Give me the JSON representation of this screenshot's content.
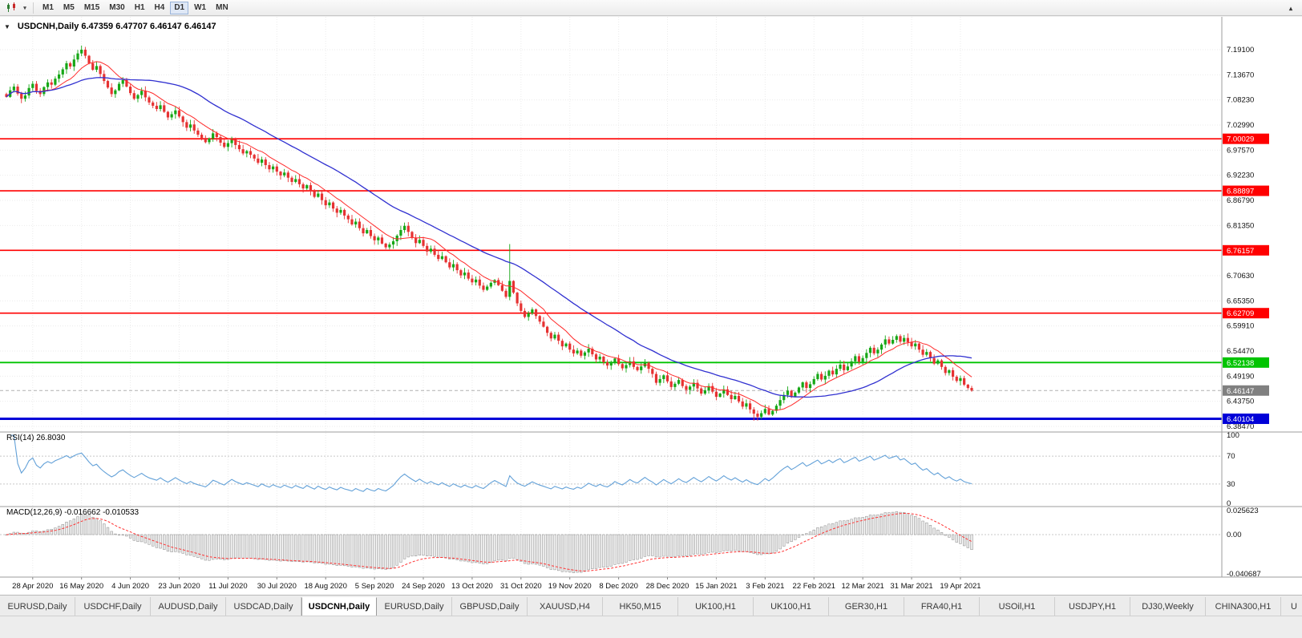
{
  "toolbar": {
    "timeframes": [
      "M1",
      "M5",
      "M15",
      "M30",
      "H1",
      "H4",
      "D1",
      "W1",
      "MN"
    ],
    "active_timeframe": "D1",
    "chart_type_icon": "candlestick-chart-icon",
    "dropdown_caret": "▾",
    "overflow_icon": "▴"
  },
  "chart_data": {
    "type": "candlestick",
    "symbol": "USDCNH",
    "period": "Daily",
    "info_line": "USDCNH,Daily 6.47359 6.47707 6.46147 6.46147",
    "ohlc_current": {
      "open": 6.47359,
      "high": 6.47707,
      "low": 6.46147,
      "close": 6.46147
    },
    "price_axis_ticks": [
      "7.19100",
      "7.13670",
      "7.08230",
      "7.02990",
      "6.97570",
      "6.92230",
      "6.86790",
      "6.81350",
      "6.76070",
      "6.70630",
      "6.65350",
      "6.59910",
      "6.54470",
      "6.49190",
      "6.43750",
      "6.38470"
    ],
    "date_axis_labels": [
      "28 Apr 2020",
      "16 May 2020",
      "4 Jun 2020",
      "23 Jun 2020",
      "11 Jul 2020",
      "30 Jul 2020",
      "18 Aug 2020",
      "5 Sep 2020",
      "24 Sep 2020",
      "13 Oct 2020",
      "31 Oct 2020",
      "19 Nov 2020",
      "8 Dec 2020",
      "28 Dec 2020",
      "15 Jan 2021",
      "3 Feb 2021",
      "22 Feb 2021",
      "12 Mar 2021",
      "31 Mar 2021",
      "19 Apr 2021"
    ],
    "bars_per_label": 13,
    "first_label_bar": 7,
    "closes": [
      7.09,
      7.104,
      7.112,
      7.097,
      7.086,
      7.093,
      7.109,
      7.118,
      7.103,
      7.096,
      7.111,
      7.121,
      7.116,
      7.129,
      7.138,
      7.149,
      7.162,
      7.155,
      7.17,
      7.183,
      7.191,
      7.178,
      7.162,
      7.148,
      7.156,
      7.139,
      7.124,
      7.11,
      7.096,
      7.104,
      7.118,
      7.126,
      7.112,
      7.098,
      7.086,
      7.094,
      7.103,
      7.089,
      7.078,
      7.071,
      7.064,
      7.072,
      7.058,
      7.046,
      7.053,
      7.061,
      7.048,
      7.036,
      7.024,
      7.031,
      7.018,
      7.009,
      7.002,
      6.993,
      7.001,
      7.012,
      7.004,
      6.992,
      6.983,
      6.991,
      6.999,
      6.987,
      6.978,
      6.969,
      6.974,
      6.966,
      6.958,
      6.949,
      6.956,
      6.944,
      6.935,
      6.941,
      6.93,
      6.922,
      6.928,
      6.917,
      6.908,
      6.914,
      6.903,
      6.894,
      6.901,
      6.888,
      6.876,
      6.883,
      6.869,
      6.858,
      6.864,
      6.851,
      6.842,
      6.848,
      6.836,
      6.828,
      6.817,
      6.823,
      6.809,
      6.798,
      6.805,
      6.792,
      6.783,
      6.789,
      6.776,
      6.768,
      6.774,
      6.781,
      6.793,
      6.805,
      6.814,
      6.801,
      6.789,
      6.777,
      6.784,
      6.771,
      6.759,
      6.765,
      6.752,
      6.743,
      6.749,
      6.736,
      6.725,
      6.732,
      6.719,
      6.708,
      6.714,
      6.701,
      6.693,
      6.699,
      6.686,
      6.677,
      6.684,
      6.692,
      6.698,
      6.687,
      6.675,
      6.662,
      6.696,
      6.671,
      6.648,
      6.632,
      6.619,
      6.627,
      6.635,
      6.621,
      6.609,
      6.598,
      6.585,
      6.573,
      6.581,
      6.568,
      6.556,
      6.562,
      6.549,
      6.541,
      6.547,
      6.536,
      6.543,
      6.551,
      6.539,
      6.528,
      6.534,
      6.522,
      6.515,
      6.521,
      6.53,
      6.518,
      6.509,
      6.516,
      6.524,
      6.512,
      6.505,
      6.513,
      6.521,
      6.508,
      6.497,
      6.478,
      6.486,
      6.494,
      6.481,
      6.469,
      6.476,
      6.484,
      6.471,
      6.463,
      6.47,
      6.478,
      6.466,
      6.455,
      6.462,
      6.471,
      6.459,
      6.448,
      6.455,
      6.464,
      6.452,
      6.443,
      6.45,
      6.438,
      6.427,
      6.434,
      6.421,
      6.412,
      6.405,
      6.413,
      6.422,
      6.41,
      6.418,
      6.429,
      6.441,
      6.452,
      6.461,
      6.449,
      6.457,
      6.468,
      6.479,
      6.467,
      6.475,
      6.486,
      6.497,
      6.485,
      6.493,
      6.504,
      6.496,
      6.508,
      6.517,
      6.505,
      6.513,
      6.524,
      6.535,
      6.523,
      6.531,
      6.542,
      6.553,
      6.541,
      6.549,
      6.56,
      6.571,
      6.562,
      6.57,
      6.578,
      6.566,
      6.574,
      6.565,
      6.556,
      6.562,
      6.549,
      6.538,
      6.544,
      6.531,
      6.519,
      6.526,
      6.512,
      6.499,
      6.505,
      6.491,
      6.482,
      6.488,
      6.474,
      6.467,
      6.4615
    ],
    "high_overrides": {
      "21": 7.197,
      "134": 6.775
    },
    "low_overrides": {
      "199": 6.397,
      "201": 6.4
    },
    "up_color": "#16a716",
    "down_color": "#e63232",
    "moving_averages": [
      {
        "period": 10,
        "color": "#ff2a2a",
        "width": 1
      },
      {
        "period": 34,
        "color": "#3030d0",
        "width": 1.3
      }
    ],
    "horizontal_lines": [
      {
        "price": 7.00029,
        "label": "7.00029",
        "color": "#ff0000",
        "width": 1.6
      },
      {
        "price": 6.88897,
        "label": "6.88897",
        "color": "#ff0000",
        "width": 1.6
      },
      {
        "price": 6.76157,
        "label": "6.76157",
        "color": "#ff0000",
        "width": 1.6
      },
      {
        "price": 6.62709,
        "label": "6.62709",
        "color": "#ff0000",
        "width": 1.6
      },
      {
        "price": 6.52138,
        "label": "6.52138",
        "color": "#00c400",
        "width": 1.8
      },
      {
        "price": 6.40104,
        "label": "6.40104",
        "color": "#0000d8",
        "width": 3
      }
    ],
    "current_price_line": {
      "value": 6.46147,
      "label": "6.46147",
      "color": "#808080"
    },
    "indicators": [
      {
        "name": "RSI",
        "label": "RSI(14) 26.8030",
        "value": 26.803,
        "period": 14,
        "line_color": "#63a1d8",
        "levels": [
          "100",
          "70",
          "30",
          "0"
        ],
        "level_lines": [
          70,
          30
        ]
      },
      {
        "name": "MACD",
        "label": "MACD(12,26,9) -0.016662 -0.010533",
        "macd_value": -0.016662,
        "signal_value": -0.010533,
        "params": [
          12,
          26,
          9
        ],
        "axis_labels": [
          "0.025623",
          "0.00",
          "-0.040687"
        ],
        "histogram_fill": "#eaeaea",
        "histogram_stroke": "#8c8c8c",
        "signal_color": "#ff3333"
      }
    ]
  },
  "tabs": [
    "EURUSD,Daily",
    "USDCHF,Daily",
    "AUDUSD,Daily",
    "USDCAD,Daily",
    "USDCNH,Daily",
    "EURUSD,Daily",
    "GBPUSD,Daily",
    "XAUUSD,H4",
    "HK50,M15",
    "UK100,H1",
    "UK100,H1",
    "GER30,H1",
    "FRA40,H1",
    "USOil,H1",
    "USDJPY,H1",
    "DJ30,Weekly",
    "CHINA300,H1",
    "U"
  ],
  "active_tab_index": 4
}
